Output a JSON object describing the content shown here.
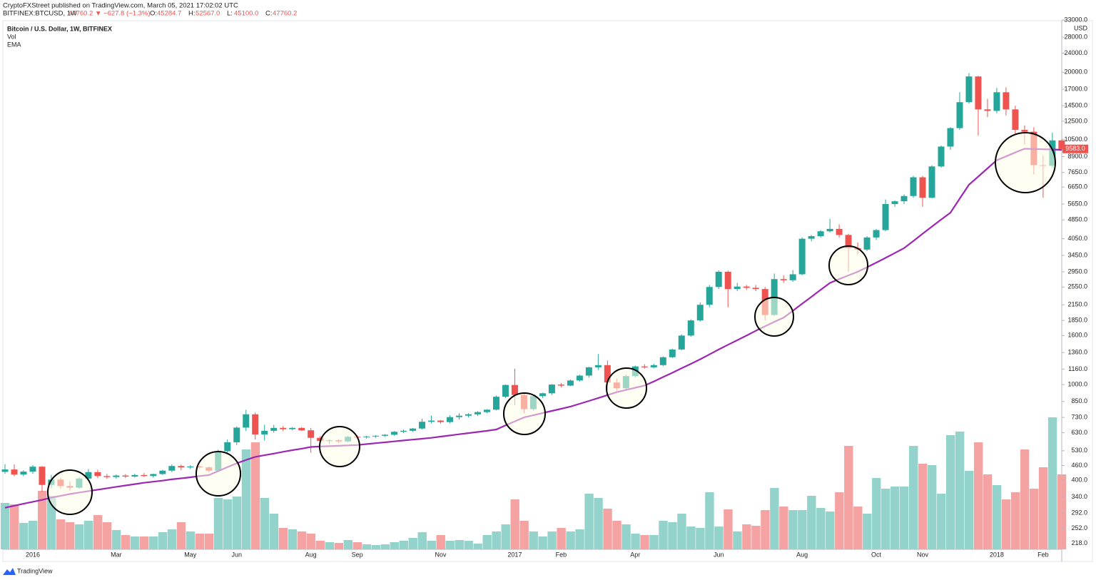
{
  "header": {
    "publisher": "CryptoFXStreet published on TradingView.com, March 05, 2021 17:02:02 UTC",
    "symbol": "BITFINEX:BTCUSD, 1W",
    "quote": "47760.2 ▼ −627.8 (−1.3%)",
    "ohlc": [
      {
        "label": "O:",
        "value": "45284.7"
      },
      {
        "label": "H:",
        "value": "52567.0"
      },
      {
        "label": "L:",
        "value": "45100.0"
      },
      {
        "label": "C:",
        "value": "47760.2"
      }
    ]
  },
  "legend": {
    "title": "Bitcoin / U.S. Dollar, 1W, BITFINEX",
    "volume": "Vol",
    "ema": "EMA"
  },
  "footer": {
    "brand": "TradingView"
  },
  "chart_data": {
    "type": "candlestick",
    "axis_unit": "USD",
    "log_scale": true,
    "up_color": "#26a69a",
    "down_color": "#ef5350",
    "volume_up_color": "#93d3cc",
    "volume_down_color": "#f5a3a2",
    "ema_color": "#9c27b0",
    "categories": [
      null,
      null,
      null,
      "2016",
      null,
      null,
      null,
      null,
      null,
      null,
      null,
      null,
      "Mar",
      null,
      null,
      null,
      null,
      null,
      null,
      null,
      "May",
      null,
      null,
      null,
      null,
      "Jun",
      null,
      null,
      null,
      null,
      null,
      null,
      null,
      "Aug",
      null,
      null,
      null,
      null,
      "Sep",
      null,
      null,
      null,
      null,
      null,
      null,
      null,
      null,
      "Nov",
      null,
      null,
      null,
      null,
      null,
      null,
      null,
      "2017",
      null,
      null,
      null,
      null,
      "Feb",
      null,
      null,
      null,
      null,
      null,
      null,
      null,
      "Apr",
      null,
      null,
      null,
      null,
      null,
      null,
      null,
      null,
      "Jun",
      null,
      null,
      null,
      null,
      null,
      null,
      null,
      null,
      "Aug",
      null,
      null,
      null,
      null,
      null,
      null,
      null,
      "Oct",
      null,
      null,
      null,
      null,
      "Nov",
      null,
      null,
      null,
      null,
      null,
      null,
      null,
      "2018",
      null,
      null,
      null,
      null,
      "Feb",
      null,
      null
    ],
    "open": [
      433,
      443,
      422,
      434,
      455,
      382,
      402,
      378,
      372,
      406,
      432,
      416,
      412,
      418,
      414,
      420,
      416,
      424,
      438,
      458,
      452,
      456,
      452,
      438,
      528,
      575,
      662,
      752,
      620,
      642,
      660,
      652,
      660,
      645,
      600,
      582,
      586,
      580,
      606,
      604,
      608,
      612,
      618,
      636,
      642,
      656,
      700,
      708,
      698,
      732,
      742,
      752,
      768,
      786,
      890,
      996,
      905,
      790,
      895,
      920,
      1000,
      990,
      1040,
      1090,
      1180,
      1205,
      1020,
      965,
      1085,
      1190,
      1180,
      1205,
      1300,
      1400,
      1600,
      1850,
      2150,
      2550,
      2950,
      2500,
      2560,
      2530,
      2500,
      1950,
      2750,
      2720,
      2880,
      4050,
      4150,
      4350,
      4450,
      4200,
      3700,
      3650,
      4100,
      4400,
      5650,
      5800,
      6100,
      7300,
      6000,
      8100,
      9800,
      11700,
      15000,
      19200,
      14000,
      13800,
      16500,
      14000,
      11500,
      11300,
      8200,
      8150,
      10400
    ],
    "high": [
      466,
      465,
      440,
      462,
      458,
      420,
      410,
      395,
      412,
      445,
      442,
      425,
      422,
      424,
      425,
      428,
      426,
      442,
      465,
      464,
      462,
      462,
      456,
      535,
      590,
      670,
      785,
      765,
      680,
      680,
      672,
      665,
      664,
      660,
      610,
      592,
      592,
      612,
      614,
      612,
      616,
      622,
      640,
      650,
      660,
      720,
      742,
      712,
      745,
      760,
      760,
      775,
      790,
      900,
      1000,
      1165,
      920,
      905,
      925,
      1005,
      1015,
      1050,
      1100,
      1185,
      1340,
      1260,
      1060,
      1100,
      1200,
      1215,
      1220,
      1310,
      1410,
      1620,
      1870,
      2200,
      2600,
      2990,
      2980,
      2650,
      2600,
      2600,
      2550,
      2900,
      2850,
      3000,
      4100,
      4200,
      4400,
      4900,
      4650,
      4250,
      3900,
      4150,
      4450,
      5900,
      5850,
      6200,
      7400,
      7400,
      8200,
      9900,
      11800,
      16500,
      19800,
      19300,
      15500,
      17200,
      17300,
      14500,
      12000,
      11800,
      9000,
      11200,
      10500
    ],
    "low": [
      425,
      415,
      415,
      425,
      358,
      370,
      368,
      362,
      368,
      400,
      408,
      405,
      405,
      408,
      410,
      412,
      410,
      420,
      432,
      440,
      445,
      446,
      430,
      436,
      522,
      560,
      640,
      590,
      585,
      630,
      640,
      645,
      640,
      520,
      560,
      565,
      572,
      575,
      596,
      596,
      600,
      605,
      612,
      628,
      635,
      650,
      690,
      688,
      690,
      715,
      730,
      740,
      760,
      780,
      880,
      820,
      760,
      780,
      880,
      905,
      975,
      985,
      1030,
      1070,
      1150,
      950,
      940,
      955,
      1070,
      1165,
      1170,
      1195,
      1290,
      1390,
      1580,
      1830,
      2100,
      2500,
      2100,
      2450,
      2480,
      2450,
      1850,
      1930,
      2650,
      2680,
      2850,
      3950,
      4100,
      4300,
      4100,
      2950,
      3500,
      3600,
      4000,
      4350,
      5500,
      5650,
      6000,
      5500,
      5950,
      8000,
      9500,
      11500,
      14800,
      10900,
      13000,
      13500,
      13200,
      11000,
      10000,
      7500,
      6000,
      8000,
      9400
    ],
    "close": [
      443,
      422,
      434,
      455,
      382,
      402,
      378,
      372,
      406,
      432,
      416,
      412,
      418,
      414,
      420,
      416,
      424,
      438,
      458,
      452,
      456,
      452,
      438,
      528,
      575,
      662,
      752,
      620,
      642,
      660,
      652,
      660,
      645,
      600,
      582,
      586,
      580,
      606,
      604,
      608,
      612,
      618,
      636,
      642,
      656,
      700,
      708,
      698,
      732,
      742,
      752,
      768,
      786,
      890,
      996,
      905,
      790,
      895,
      920,
      1000,
      990,
      1040,
      1090,
      1180,
      1205,
      1020,
      965,
      1085,
      1190,
      1180,
      1205,
      1300,
      1400,
      1600,
      1850,
      2150,
      2550,
      2950,
      2500,
      2560,
      2530,
      2500,
      1950,
      2750,
      2720,
      2880,
      4050,
      4150,
      4350,
      4450,
      4200,
      3700,
      3650,
      4100,
      4400,
      5650,
      5800,
      6100,
      7300,
      6000,
      8100,
      9800,
      11700,
      15000,
      19200,
      14000,
      13800,
      16500,
      14000,
      11500,
      11300,
      8200,
      8150,
      10400,
      9583
    ],
    "volume": [
      65,
      63,
      37,
      40,
      82,
      75,
      42,
      38,
      35,
      40,
      48,
      38,
      27,
      20,
      18,
      18,
      18,
      24,
      28,
      38,
      25,
      22,
      22,
      72,
      70,
      74,
      140,
      150,
      72,
      50,
      30,
      28,
      25,
      22,
      12,
      10,
      9,
      13,
      10,
      7,
      6,
      7,
      10,
      12,
      16,
      24,
      12,
      20,
      12,
      13,
      12,
      8,
      20,
      25,
      35,
      70,
      40,
      25,
      18,
      25,
      30,
      25,
      28,
      78,
      72,
      57,
      40,
      35,
      22,
      20,
      20,
      40,
      38,
      50,
      32,
      30,
      80,
      32,
      56,
      25,
      35,
      33,
      55,
      86,
      60,
      55,
      55,
      75,
      58,
      53,
      80,
      145,
      60,
      50,
      100,
      85,
      88,
      88,
      145,
      120,
      118,
      78,
      160,
      165,
      110,
      150,
      105,
      90,
      70,
      80,
      140,
      85,
      115,
      185,
      105
    ],
    "vlim": [
      0,
      200
    ],
    "ema": [
      307,
      313,
      319,
      325,
      331,
      338,
      344,
      350,
      355,
      360,
      365,
      370,
      375,
      380,
      385,
      390,
      394,
      398,
      403,
      407,
      411,
      416,
      420,
      436,
      453,
      470,
      485,
      500,
      508,
      516,
      525,
      533,
      541,
      550,
      552,
      554,
      556,
      558,
      560,
      565,
      570,
      575,
      580,
      585,
      590,
      595,
      600,
      607,
      614,
      621,
      628,
      635,
      642,
      650,
      676,
      703,
      730,
      745,
      761,
      777,
      793,
      810,
      832,
      855,
      879,
      904,
      930,
      950,
      970,
      990,
      1030,
      1075,
      1120,
      1170,
      1220,
      1275,
      1335,
      1400,
      1465,
      1530,
      1600,
      1675,
      1750,
      1825,
      1900,
      2030,
      2170,
      2320,
      2480,
      2650,
      2750,
      2850,
      2950,
      3080,
      3220,
      3370,
      3530,
      3700,
      3960,
      4250,
      4550,
      4870,
      5200,
      5950,
      6800,
      7350,
      7950,
      8600,
      8920,
      9260,
      9600,
      9580,
      9550,
      9530,
      9500
    ],
    "last_price": {
      "value": 9583,
      "label": "9583.0"
    },
    "ylim": [
      206,
      33000
    ],
    "yticks": [
      {
        "value": 218,
        "label": "218.0"
      },
      {
        "value": 252,
        "label": "252.0"
      },
      {
        "value": 292,
        "label": "292.0"
      },
      {
        "value": 340,
        "label": "340.0"
      },
      {
        "value": 400,
        "label": "400.0"
      },
      {
        "value": 460,
        "label": "460.0"
      },
      {
        "value": 530,
        "label": "530.0"
      },
      {
        "value": 630,
        "label": "630.0"
      },
      {
        "value": 730,
        "label": "730.0"
      },
      {
        "value": 850,
        "label": "850.0"
      },
      {
        "value": 1000,
        "label": "1000.0"
      },
      {
        "value": 1160,
        "label": "1160.0"
      },
      {
        "value": 1360,
        "label": "1360.0"
      },
      {
        "value": 1600,
        "label": "1600.0"
      },
      {
        "value": 1850,
        "label": "1850.0"
      },
      {
        "value": 2150,
        "label": "2150.0"
      },
      {
        "value": 2550,
        "label": "2550.0"
      },
      {
        "value": 2950,
        "label": "2950.0"
      },
      {
        "value": 3450,
        "label": "3450.0"
      },
      {
        "value": 4050,
        "label": "4050.0"
      },
      {
        "value": 4850,
        "label": "4850.0"
      },
      {
        "value": 5650,
        "label": "5650.0"
      },
      {
        "value": 6650,
        "label": "6650.0"
      },
      {
        "value": 7650,
        "label": "7650.0"
      },
      {
        "value": 8900,
        "label": "8900.0"
      },
      {
        "value": 10500,
        "label": "10500.0"
      },
      {
        "value": 12500,
        "label": "12500.0"
      },
      {
        "value": 14500,
        "label": "14500.0"
      },
      {
        "value": 17000,
        "label": "17000.0"
      },
      {
        "value": 20000,
        "label": "20000.0"
      },
      {
        "value": 24000,
        "label": "24000.0"
      },
      {
        "value": 28000,
        "label": "28000.0"
      },
      {
        "value": 33000,
        "label": "33000.0"
      }
    ]
  }
}
